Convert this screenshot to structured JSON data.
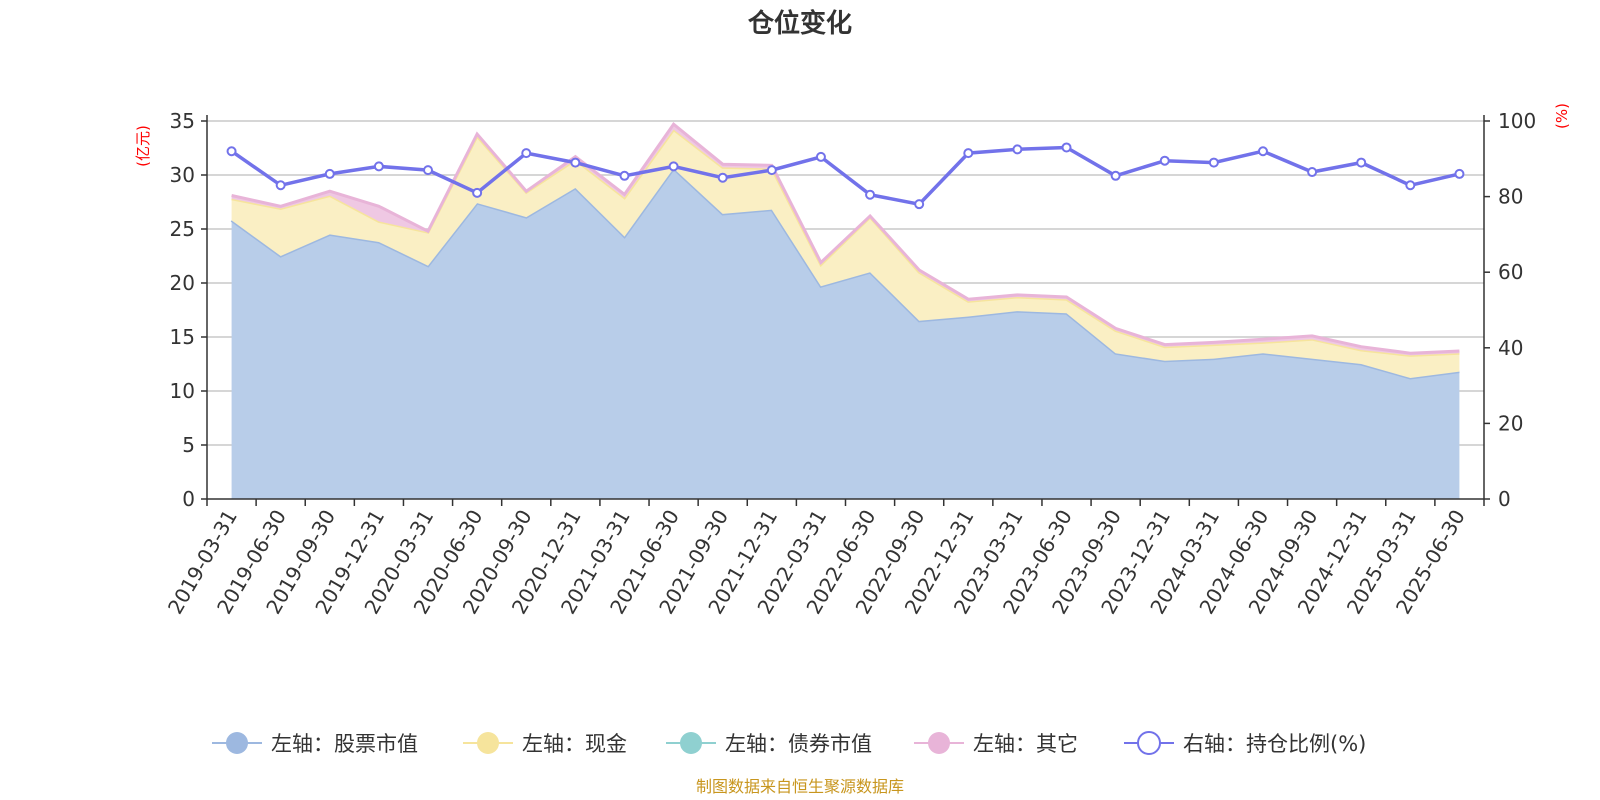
{
  "chart_data": {
    "type": "area",
    "title": "仓位变化",
    "categories": [
      "2019-03-31",
      "2019-06-30",
      "2019-09-30",
      "2019-12-31",
      "2020-03-31",
      "2020-06-30",
      "2020-09-30",
      "2020-12-31",
      "2021-03-31",
      "2021-06-30",
      "2021-09-30",
      "2021-12-31",
      "2022-03-31",
      "2022-06-30",
      "2022-09-30",
      "2022-12-31",
      "2023-03-31",
      "2023-06-30",
      "2023-09-30",
      "2023-12-31",
      "2024-03-31",
      "2024-06-30",
      "2024-09-30",
      "2024-12-31",
      "2025-03-31",
      "2025-06-30"
    ],
    "left_axis": {
      "unit": "(亿元)",
      "ylim": [
        0,
        35
      ],
      "ticks": [
        0,
        5,
        10,
        15,
        20,
        25,
        30,
        35
      ]
    },
    "right_axis": {
      "unit": "(%)",
      "ylim": [
        0,
        100
      ],
      "ticks": [
        0,
        20,
        40,
        60,
        80,
        100
      ]
    },
    "stacked": true,
    "grid": true,
    "legend_position": "bottom",
    "series": [
      {
        "name": "左轴：股票市值",
        "axis": "left",
        "kind": "area",
        "color": "#9db8e0",
        "fill": "#b8cde9",
        "values": [
          25.8,
          22.5,
          24.5,
          23.8,
          21.6,
          27.4,
          26.1,
          28.8,
          24.3,
          30.6,
          26.4,
          26.8,
          19.7,
          21.0,
          16.5,
          16.9,
          17.4,
          17.2,
          13.5,
          12.8,
          13.0,
          13.5,
          13.0,
          12.5,
          11.2,
          11.8
        ]
      },
      {
        "name": "左轴：现金",
        "axis": "left",
        "kind": "area",
        "color": "#f6e49c",
        "fill": "#faefc4",
        "values": [
          2.0,
          4.4,
          3.6,
          1.9,
          3.1,
          6.2,
          2.3,
          2.6,
          3.6,
          3.6,
          4.3,
          3.8,
          2.0,
          5.1,
          4.5,
          1.4,
          1.3,
          1.3,
          2.1,
          1.3,
          1.3,
          1.0,
          1.8,
          1.3,
          2.1,
          1.7
        ]
      },
      {
        "name": "左轴：债券市值",
        "axis": "left",
        "kind": "area",
        "color": "#8fd0d0",
        "fill": "#a7dcdc",
        "values": [
          0,
          0,
          0,
          0,
          0,
          0,
          0,
          0,
          0,
          0,
          0,
          0,
          0,
          0,
          0,
          0,
          0,
          0,
          0,
          0,
          0,
          0,
          0,
          0,
          0,
          0
        ]
      },
      {
        "name": "左轴：其它",
        "axis": "left",
        "kind": "area",
        "color": "#e8b4d8",
        "fill": "#efc8e3",
        "values": [
          0.3,
          0.2,
          0.4,
          1.4,
          0.1,
          0.2,
          0.1,
          0.3,
          0.3,
          0.5,
          0.3,
          0.3,
          0.2,
          0.1,
          0.2,
          0.2,
          0.2,
          0.2,
          0.2,
          0.2,
          0.2,
          0.3,
          0.3,
          0.3,
          0.2,
          0.2
        ]
      },
      {
        "name": "右轴：持仓比例(%)",
        "axis": "right",
        "kind": "line",
        "color": "#7272ea",
        "values": [
          92.0,
          83.0,
          86.0,
          88.0,
          87.0,
          81.0,
          91.5,
          89.0,
          85.5,
          88.0,
          85.0,
          87.0,
          90.5,
          80.5,
          78.0,
          91.5,
          92.5,
          93.0,
          85.5,
          89.5,
          89.0,
          92.0,
          86.5,
          89.0,
          83.0,
          86.0
        ]
      }
    ],
    "footer": "制图数据来自恒生聚源数据库"
  }
}
